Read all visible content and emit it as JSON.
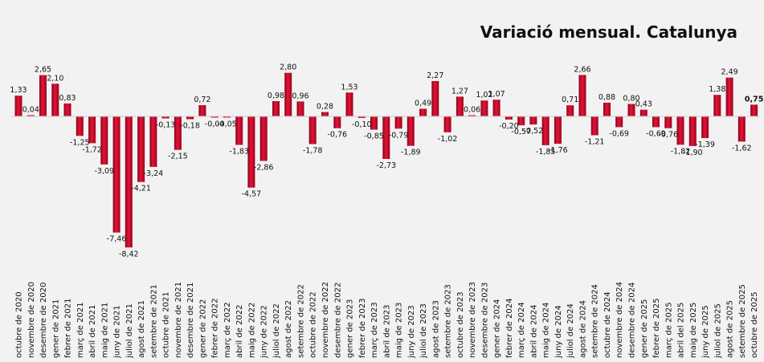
{
  "chart_data": {
    "type": "bar",
    "title": "Variació mensual. Catalunya",
    "xlabel": "",
    "ylabel": "",
    "ylim": [
      -8.42,
      2.8
    ],
    "grid": false,
    "legend": "none",
    "bar_color": "#c00020",
    "categories": [
      "octubre de 2020",
      "novembre de 2020",
      "desembre de 2020",
      "gener de 2021",
      "febrer de 2021",
      "març de 2021",
      "abril de 2021",
      "maig de 2021",
      "juny de 2021",
      "juliol de 2021",
      "agost de 2021",
      "setembre de 2021",
      "octubre de 2021",
      "novembre de 2021",
      "desembre de 2021",
      "gener de 2022",
      "febrer de 2022",
      "març de 2022",
      "abril de 2022",
      "maig de 2022",
      "juny de 2022",
      "juliol de 2022",
      "agost de 2022",
      "setembre de 2022",
      "octubre de 2022",
      "novembre de 2022",
      "desembre de 2022",
      "gener de 2023",
      "febrer de 2023",
      "març de 2023",
      "abril de 2023",
      "maig de 2023",
      "juny de 2023",
      "juliol de 2023",
      "agost de 2023",
      "setembre de 2023",
      "octubre de 2023",
      "novembre de 2023",
      "desembre de 2023",
      "gener de 2024",
      "febrer de 2024",
      "març de 2024",
      "abril de 2024",
      "maig de 2024",
      "juny de 2024",
      "juliol de 2024",
      "agost de 2024",
      "setembre de 2024",
      "octubre de 2024",
      "novembre de 2024",
      "desembre de 2024",
      "gener de 2025",
      "febrer de 2025",
      "març de 2025",
      "abril del 2025",
      "maig de 2025",
      "juny de 2025",
      "juliol de 2025",
      "agost de 2025",
      "setembre de 2025",
      "octubre de 2025"
    ],
    "values": [
      1.33,
      0.04,
      2.65,
      2.1,
      0.83,
      -1.25,
      -1.72,
      -3.09,
      -7.46,
      -8.42,
      -4.21,
      -3.24,
      -0.13,
      -2.15,
      -0.18,
      0.72,
      -0.04,
      -0.05,
      -1.83,
      -4.57,
      -2.86,
      0.98,
      2.8,
      0.96,
      -1.78,
      0.28,
      -0.76,
      1.53,
      -0.1,
      -0.85,
      -2.73,
      -0.79,
      -1.89,
      0.49,
      2.27,
      -1.02,
      1.27,
      0.06,
      1.02,
      1.07,
      -0.2,
      -0.57,
      -0.52,
      -1.85,
      -1.76,
      0.71,
      2.66,
      -1.21,
      0.88,
      -0.69,
      0.8,
      0.43,
      -0.69,
      -0.76,
      -1.82,
      -1.9,
      -1.39,
      1.38,
      2.49,
      -1.62,
      0.75
    ],
    "value_labels": [
      "1,33",
      "0,04",
      "2,65",
      "2,10",
      "0,83",
      "-1,25",
      "-1,72",
      "-3,09",
      "-7,46",
      "-8,42",
      "-4,21",
      "-3,24",
      "-0,13",
      "-2,15",
      "-0,18",
      "0,72",
      "-0,04",
      "-0,05",
      "-1,83",
      "-4,57",
      "-2,86",
      "0,98",
      "2,80",
      "0,96",
      "-1,78",
      "0,28",
      "-0,76",
      "1,53",
      "-0,10",
      "-0,85",
      "-2,73",
      "-0,79",
      "-1,89",
      "0,49",
      "2,27",
      "-1,02",
      "1,27",
      "0,06",
      "1,02",
      "1,07",
      "-0,20",
      "-0,57",
      "-0,52",
      "-1,85",
      "-1,76",
      "0,71",
      "2,66",
      "-1,21",
      "0,88",
      "-0,69",
      "0,80",
      "0,43",
      "-0,69",
      "-0,76",
      "-1,82",
      "-1,90",
      "-1,39",
      "1,38",
      "2,49",
      "-1,62",
      "0,75"
    ]
  }
}
